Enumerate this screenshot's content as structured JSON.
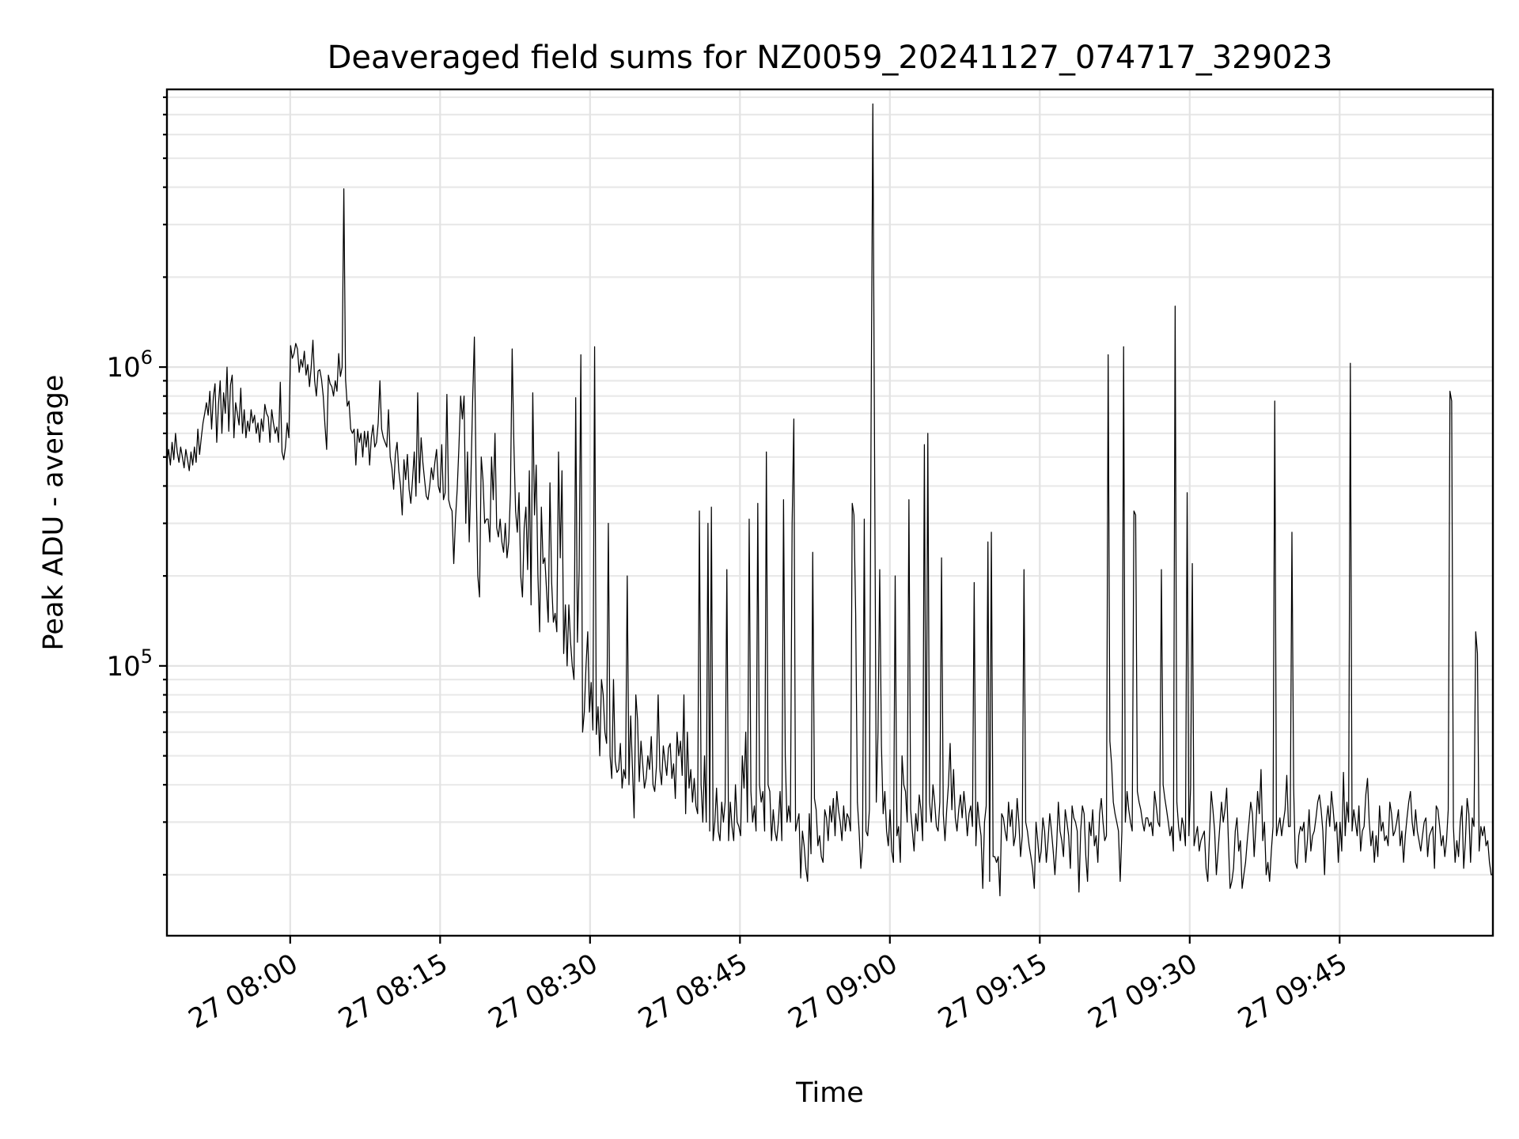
{
  "chart_data": {
    "type": "line",
    "title": "Deaveraged field sums for NZ0059_20241127_074717_329023",
    "xlabel": "Time",
    "ylabel": "Peak ADU - average",
    "yscale": "log",
    "ylim": [
      12500,
      8500000
    ],
    "xlim": [
      "27 07:47:40",
      "27 10:00:20"
    ],
    "grid": true,
    "x_ticks": [
      "27 08:00",
      "27 08:15",
      "27 08:30",
      "27 08:45",
      "27 09:00",
      "27 09:15",
      "27 09:30",
      "27 09:45"
    ],
    "y_ticks": [
      {
        "value": 100000,
        "base": "10",
        "exp": "5"
      },
      {
        "value": 1000000,
        "base": "10",
        "exp": "6"
      }
    ],
    "line_color": "#000000",
    "x_start": "27 07:47:40",
    "x_end": "27 10:00:20",
    "values": [
      480000,
      530000,
      470000,
      560000,
      490000,
      600000,
      520000,
      480000,
      540000,
      500000,
      460000,
      530000,
      490000,
      450000,
      520000,
      470000,
      540000,
      480000,
      620000,
      510000,
      580000,
      650000,
      700000,
      760000,
      690000,
      830000,
      620000,
      790000,
      880000,
      560000,
      750000,
      900000,
      600000,
      820000,
      700000,
      1000000,
      610000,
      870000,
      940000,
      580000,
      760000,
      700000,
      640000,
      850000,
      600000,
      720000,
      580000,
      660000,
      610000,
      720000,
      650000,
      690000,
      600000,
      650000,
      560000,
      670000,
      610000,
      750000,
      700000,
      680000,
      560000,
      720000,
      650000,
      600000,
      630000,
      560000,
      890000,
      520000,
      490000,
      540000,
      650000,
      580000,
      1180000,
      1070000,
      1110000,
      1200000,
      1150000,
      960000,
      1060000,
      1000000,
      1130000,
      940000,
      1020000,
      860000,
      1000000,
      1230000,
      900000,
      800000,
      970000,
      980000,
      910000,
      800000,
      640000,
      530000,
      940000,
      880000,
      860000,
      800000,
      900000,
      830000,
      1110000,
      930000,
      1000000,
      3950000,
      910000,
      740000,
      770000,
      620000,
      600000,
      620000,
      470000,
      620000,
      560000,
      600000,
      500000,
      610000,
      540000,
      610000,
      470000,
      580000,
      640000,
      540000,
      560000,
      650000,
      900000,
      620000,
      580000,
      560000,
      540000,
      720000,
      500000,
      460000,
      390000,
      510000,
      560000,
      450000,
      400000,
      320000,
      490000,
      420000,
      510000,
      390000,
      350000,
      420000,
      520000,
      370000,
      820000,
      410000,
      580000,
      480000,
      420000,
      370000,
      360000,
      400000,
      460000,
      420000,
      480000,
      530000,
      400000,
      380000,
      550000,
      360000,
      380000,
      810000,
      360000,
      340000,
      330000,
      220000,
      310000,
      390000,
      540000,
      800000,
      670000,
      800000,
      300000,
      520000,
      260000,
      430000,
      780000,
      1260000,
      420000,
      200000,
      170000,
      500000,
      420000,
      300000,
      310000,
      310000,
      260000,
      500000,
      360000,
      600000,
      290000,
      270000,
      310000,
      260000,
      240000,
      300000,
      230000,
      260000,
      380000,
      1150000,
      550000,
      330000,
      280000,
      380000,
      200000,
      170000,
      290000,
      340000,
      210000,
      450000,
      160000,
      820000,
      320000,
      470000,
      200000,
      130000,
      340000,
      220000,
      230000,
      180000,
      140000,
      410000,
      190000,
      140000,
      150000,
      130000,
      520000,
      230000,
      450000,
      110000,
      160000,
      100000,
      160000,
      120000,
      100000,
      90000,
      790000,
      120000,
      210000,
      1100000,
      60000,
      70000,
      100000,
      130000,
      70000,
      88000,
      61000,
      1170000,
      59000,
      73000,
      50000,
      90000,
      80000,
      60000,
      55000,
      300000,
      50000,
      42000,
      90000,
      48000,
      44000,
      45000,
      55000,
      39000,
      45000,
      42000,
      200000,
      40000,
      68000,
      46000,
      31000,
      80000,
      66000,
      41000,
      56000,
      47000,
      39000,
      42000,
      50000,
      45000,
      58000,
      40000,
      38000,
      46000,
      80000,
      45000,
      40000,
      54000,
      48000,
      43000,
      53000,
      55000,
      42000,
      47000,
      36000,
      60000,
      50000,
      56000,
      43000,
      80000,
      32000,
      60000,
      39000,
      45000,
      35000,
      42000,
      34000,
      32000,
      330000,
      40000,
      30000,
      50000,
      30000,
      300000,
      28000,
      340000,
      26000,
      30000,
      39000,
      28000,
      26000,
      35000,
      30000,
      35000,
      210000,
      26000,
      35000,
      29000,
      26000,
      40000,
      30000,
      29000,
      27000,
      50000,
      39000,
      60000,
      30000,
      310000,
      38000,
      30000,
      34000,
      28000,
      350000,
      40000,
      35000,
      38000,
      28000,
      520000,
      40000,
      38000,
      26000,
      33000,
      28000,
      26000,
      30000,
      38000,
      26000,
      360000,
      50000,
      30000,
      34000,
      30000,
      300000,
      670000,
      28000,
      30000,
      32000,
      19500,
      28000,
      25000,
      21000,
      19000,
      32000,
      23500,
      240000,
      36000,
      33000,
      25000,
      27000,
      23000,
      22000,
      33000,
      31000,
      26000,
      34000,
      30000,
      36000,
      27000,
      38000,
      33000,
      30000,
      26000,
      34000,
      28000,
      32000,
      31000,
      28000,
      350000,
      320000,
      150000,
      35000,
      28000,
      21000,
      25000,
      310000,
      28000,
      27000,
      33000,
      700000,
      7600000,
      520000,
      35000,
      60000,
      210000,
      54000,
      32000,
      38000,
      28000,
      25000,
      33000,
      24000,
      22000,
      200000,
      27000,
      29000,
      22000,
      50000,
      40000,
      38000,
      30000,
      360000,
      33000,
      28000,
      24000,
      32000,
      28000,
      37000,
      33000,
      26000,
      550000,
      30000,
      600000,
      35000,
      30000,
      40000,
      35000,
      29000,
      28000,
      35000,
      230000,
      32000,
      26000,
      33000,
      40000,
      55000,
      33000,
      45000,
      31000,
      28000,
      33000,
      37000,
      31000,
      38000,
      33000,
      27000,
      32000,
      34000,
      29000,
      190000,
      25000,
      35000,
      30000,
      27000,
      18000,
      30000,
      34000,
      260000,
      19000,
      280000,
      23000,
      23000,
      22000,
      23000,
      17000,
      32000,
      31000,
      28000,
      26000,
      35000,
      29000,
      33000,
      25000,
      27000,
      36000,
      30000,
      23000,
      27000,
      210000,
      30000,
      28000,
      25000,
      23000,
      21000,
      18000,
      30000,
      26000,
      22000,
      24000,
      31000,
      28000,
      22000,
      26000,
      32000,
      28000,
      24000,
      20000,
      25000,
      35000,
      28000,
      26000,
      23000,
      33000,
      30000,
      27000,
      21000,
      34000,
      31000,
      30000,
      28000,
      17500,
      28000,
      34000,
      32000,
      23000,
      19000,
      30000,
      27000,
      33000,
      25000,
      27000,
      22000,
      32000,
      36000,
      30000,
      26000,
      27000,
      1100000,
      56000,
      47000,
      35000,
      32000,
      30000,
      28000,
      19000,
      28000,
      1170000,
      30000,
      38000,
      33000,
      30000,
      28000,
      330000,
      320000,
      38000,
      35000,
      33000,
      30000,
      28000,
      31000,
      31000,
      29000,
      30000,
      27000,
      38000,
      34000,
      30000,
      29000,
      210000,
      40000,
      36000,
      33000,
      30000,
      27000,
      29000,
      24000,
      1600000,
      35000,
      29000,
      26000,
      31000,
      29000,
      25000,
      380000,
      27000,
      39000,
      220000,
      25000,
      27000,
      29000,
      24000,
      26000,
      27000,
      28000,
      21000,
      19000,
      27000,
      38000,
      33000,
      28000,
      20000,
      24000,
      29000,
      35000,
      30000,
      33000,
      39000,
      26000,
      18000,
      19000,
      21000,
      28000,
      31000,
      24000,
      26000,
      18000,
      20000,
      22000,
      26000,
      30000,
      35000,
      32000,
      23000,
      29000,
      38000,
      32000,
      45000,
      26000,
      30000,
      20000,
      22000,
      19000,
      24000,
      29000,
      770000,
      27000,
      29000,
      31000,
      27000,
      30000,
      33000,
      43000,
      29000,
      29000,
      280000,
      39000,
      22000,
      21000,
      27000,
      29000,
      28000,
      30000,
      22000,
      26000,
      33000,
      24000,
      27000,
      28000,
      31000,
      35000,
      37000,
      33000,
      28000,
      20000,
      30000,
      34000,
      29000,
      38000,
      33000,
      28000,
      30000,
      22000,
      30000,
      24000,
      44000,
      27000,
      35000,
      30000,
      1030000,
      28000,
      33000,
      30000,
      27000,
      34000,
      24000,
      28000,
      29000,
      37000,
      42000,
      30000,
      25000,
      28000,
      22000,
      27000,
      23000,
      34000,
      28000,
      30000,
      26000,
      27000,
      25000,
      35000,
      32000,
      27000,
      28000,
      30000,
      33000,
      25000,
      28000,
      22000,
      27000,
      31000,
      35000,
      38000,
      30000,
      27000,
      33000,
      28000,
      26000,
      24000,
      27000,
      30000,
      31000,
      23000,
      27000,
      28000,
      29000,
      21000,
      34000,
      33000,
      29000,
      25000,
      27000,
      23000,
      26000,
      33000,
      830000,
      770000,
      29000,
      22000,
      26000,
      23000,
      30000,
      34000,
      21000,
      26000,
      36000,
      32000,
      22000,
      31000,
      29000,
      130000,
      110000,
      24000,
      29000,
      27000,
      29000,
      25000,
      26000,
      22000,
      20000,
      20000
    ]
  }
}
